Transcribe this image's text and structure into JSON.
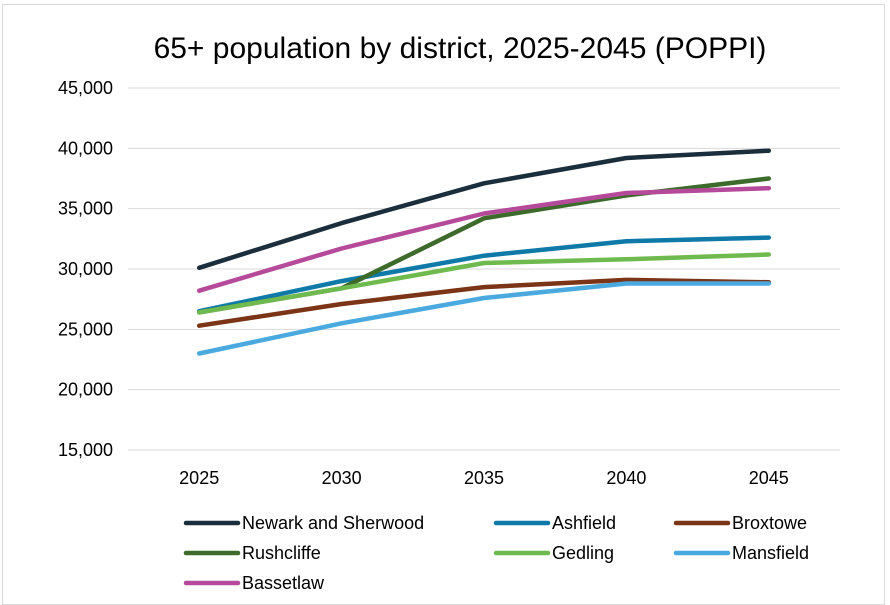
{
  "chart_data": {
    "type": "line",
    "title": "65+ population by district, 2025-2045 (POPPI)",
    "xlabel": "",
    "ylabel": "",
    "categories": [
      "2025",
      "2030",
      "2035",
      "2040",
      "2045"
    ],
    "ylim": [
      15000,
      45000
    ],
    "yticks": [
      15000,
      20000,
      25000,
      30000,
      35000,
      40000,
      45000
    ],
    "ytick_labels": [
      "15,000",
      "20,000",
      "25,000",
      "30,000",
      "35,000",
      "40,000",
      "45,000"
    ],
    "grid": true,
    "legend_position": "bottom",
    "series": [
      {
        "name": "Newark and Sherwood",
        "color": "#1a2e3b",
        "values": [
          30100,
          33800,
          37100,
          39200,
          39800
        ]
      },
      {
        "name": "Ashfield",
        "color": "#0f79a8",
        "values": [
          26500,
          29000,
          31100,
          32300,
          32600
        ]
      },
      {
        "name": "Broxtowe",
        "color": "#7b3416",
        "values": [
          25300,
          27100,
          28500,
          29100,
          28900
        ]
      },
      {
        "name": "Rushcliffe",
        "color": "#3c6b2b",
        "values": [
          26400,
          28400,
          34200,
          36100,
          37500
        ]
      },
      {
        "name": "Gedling",
        "color": "#6fba4f",
        "values": [
          26400,
          28400,
          30500,
          30800,
          31200
        ]
      },
      {
        "name": "Mansfield",
        "color": "#4aaadf",
        "values": [
          23000,
          25500,
          27600,
          28800,
          28800
        ]
      },
      {
        "name": "Bassetlaw",
        "color": "#b64a9a",
        "values": [
          28200,
          31700,
          34600,
          36300,
          36700
        ]
      }
    ]
  }
}
